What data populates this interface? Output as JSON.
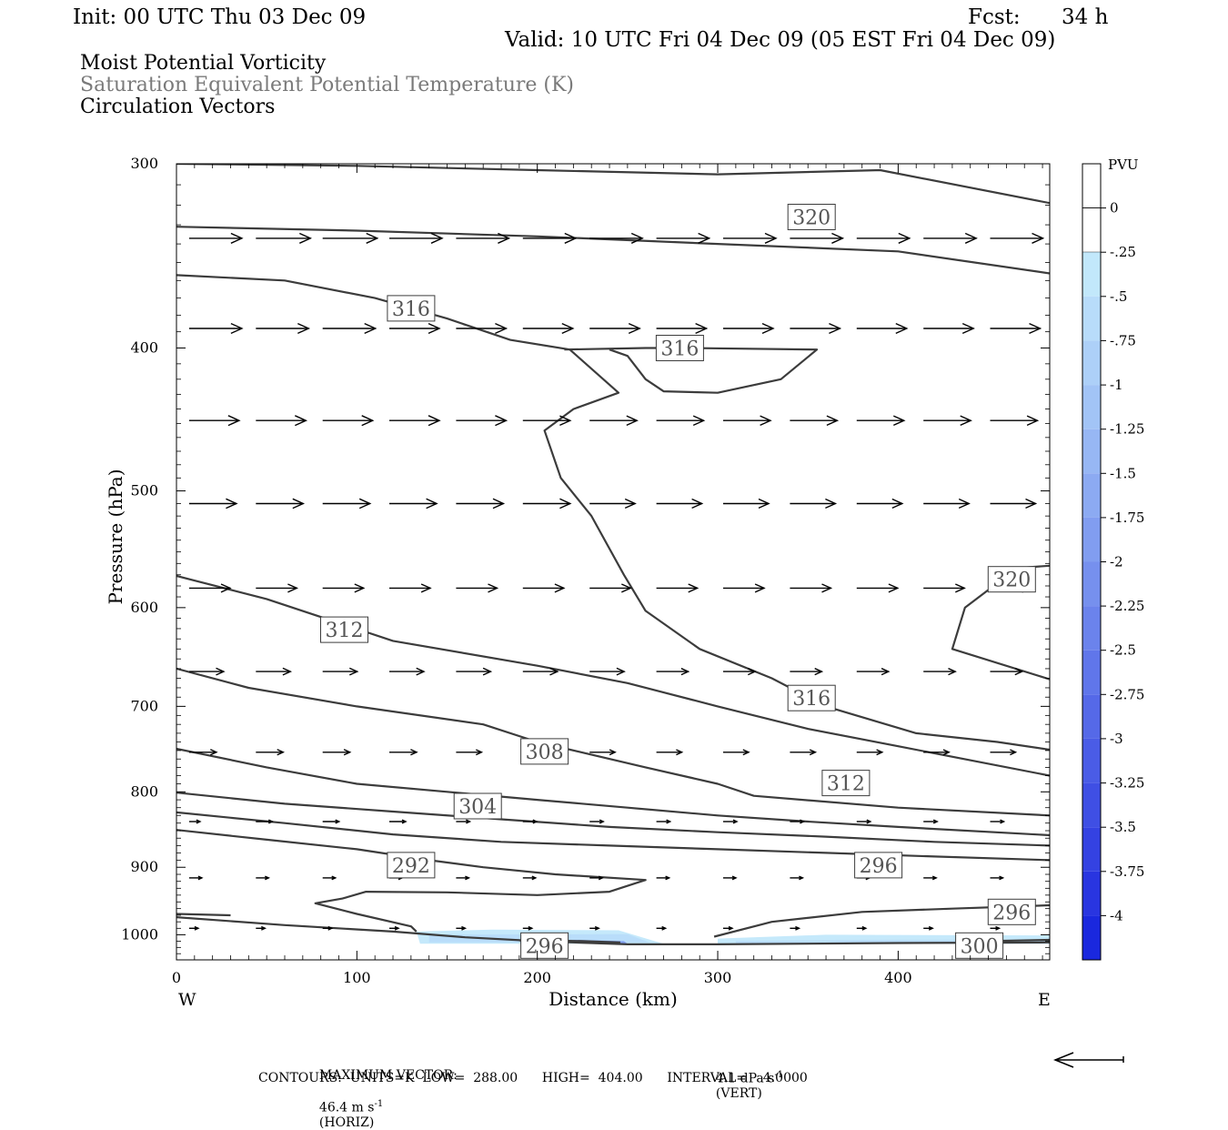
{
  "header": {
    "init": "Init: 00 UTC Thu 03 Dec 09",
    "fcst_label": "Fcst:",
    "fcst_value": "34 h",
    "valid": "Valid: 10 UTC Fri 04 Dec 09 (05 EST Fri 04 Dec 09)"
  },
  "fields": [
    {
      "label": "Moist Potential Vorticity",
      "color": "#000000"
    },
    {
      "label": "Saturation Equivalent Potential Temperature (K)",
      "color": "#7a7a7a"
    },
    {
      "label": "Circulation Vectors",
      "color": "#000000"
    }
  ],
  "footer": {
    "max_vector_label": "MAXIMUM VECTOR:",
    "horiz_value": "46.4 m s",
    "horiz_exp": "-1",
    "horiz_tag": "(HORIZ)",
    "vert_value": "4.1 dPa s",
    "vert_exp": "-1",
    "vert_tag": "(VERT)",
    "contours": "CONTOURS:  UNITS=K  LOW=  288.00      HIGH=  404.00      INTERVAL=    4.0000"
  },
  "chart_data": {
    "type": "cross-section",
    "xlabel": "Distance (km)",
    "ylabel": "Pressure (hPa)",
    "xlim": [
      0,
      484
    ],
    "ylim": [
      1040,
      300
    ],
    "y_scale": "log",
    "x_ticks": [
      0,
      100,
      200,
      300,
      400
    ],
    "y_ticks": [
      300,
      400,
      500,
      600,
      700,
      800,
      900,
      1000
    ],
    "x_end_labels": {
      "left": "W",
      "right": "E"
    },
    "colorbar": {
      "title": "PVU",
      "labels": [
        "0",
        "-.25",
        "-.5",
        "-.75",
        "-1",
        "-1.25",
        "-1.5",
        "-1.75",
        "-2",
        "-2.25",
        "-2.5",
        "-2.75",
        "-3",
        "-3.25",
        "-3.5",
        "-3.75",
        "-4"
      ],
      "colors": [
        "#ffffff",
        "#c2e8fb",
        "#b8dcfa",
        "#add0f8",
        "#a2c4f6",
        "#97b7f4",
        "#8caaf2",
        "#819df0",
        "#7690ee",
        "#6b83ec",
        "#6076ea",
        "#5569e8",
        "#4a5ce6",
        "#3f4fe4",
        "#3442e2",
        "#2935e0",
        "#1a28de"
      ]
    },
    "contour_labels": [
      {
        "x": 352,
        "p": 326,
        "text": "320"
      },
      {
        "x": 130,
        "p": 376,
        "text": "316"
      },
      {
        "x": 279,
        "p": 400,
        "text": "316"
      },
      {
        "x": 463,
        "p": 574,
        "text": "320"
      },
      {
        "x": 93,
        "p": 621,
        "text": "312"
      },
      {
        "x": 352,
        "p": 691,
        "text": "316"
      },
      {
        "x": 204,
        "p": 751,
        "text": "308"
      },
      {
        "x": 371,
        "p": 789,
        "text": "312"
      },
      {
        "x": 167,
        "p": 818,
        "text": "304"
      },
      {
        "x": 130,
        "p": 897,
        "text": "292"
      },
      {
        "x": 389,
        "p": 897,
        "text": "296"
      },
      {
        "x": 463,
        "p": 965,
        "text": "296"
      },
      {
        "x": 204,
        "p": 1017,
        "text": "296"
      },
      {
        "x": 445,
        "p": 1017,
        "text": "300"
      }
    ],
    "contours": [
      {
        "points": [
          [
            0,
            300
          ],
          [
            100,
            301
          ],
          [
            200,
            303
          ],
          [
            300,
            305
          ],
          [
            390,
            303
          ],
          [
            484,
            319
          ]
        ]
      },
      {
        "points": [
          [
            0,
            331
          ],
          [
            100,
            333
          ],
          [
            200,
            336
          ],
          [
            300,
            340
          ],
          [
            400,
            344
          ],
          [
            484,
            356
          ]
        ]
      },
      {
        "points": [
          [
            0,
            357
          ],
          [
            60,
            360
          ],
          [
            110,
            370
          ],
          [
            150,
            382
          ],
          [
            185,
            395
          ],
          [
            218,
            401
          ],
          [
            245,
            429
          ],
          [
            220,
            440
          ],
          [
            204,
            455
          ],
          [
            213,
            490
          ],
          [
            230,
            520
          ],
          [
            248,
            570
          ],
          [
            260,
            603
          ],
          [
            290,
            640
          ],
          [
            330,
            670
          ],
          [
            360,
            700
          ],
          [
            410,
            730
          ],
          [
            455,
            740
          ],
          [
            484,
            749
          ]
        ]
      },
      {
        "points": [
          [
            215,
            401
          ],
          [
            260,
            400
          ],
          [
            283,
            400
          ],
          [
            355,
            401
          ],
          [
            335,
            420
          ],
          [
            300,
            429
          ],
          [
            270,
            428
          ],
          [
            260,
            420
          ],
          [
            250,
            405
          ],
          [
            240,
            401
          ]
        ]
      },
      {
        "points": [
          [
            484,
            562
          ],
          [
            466,
            564
          ],
          [
            437,
            600
          ],
          [
            430,
            640
          ],
          [
            484,
            671
          ]
        ]
      },
      {
        "points": [
          [
            0,
            571
          ],
          [
            50,
            592
          ],
          [
            120,
            632
          ],
          [
            200,
            657
          ],
          [
            250,
            675
          ],
          [
            300,
            700
          ],
          [
            350,
            725
          ],
          [
            400,
            745
          ],
          [
            484,
            780
          ]
        ]
      },
      {
        "points": [
          [
            0,
            660
          ],
          [
            40,
            680
          ],
          [
            100,
            700
          ],
          [
            170,
            720
          ],
          [
            200,
            740
          ],
          [
            260,
            770
          ],
          [
            300,
            790
          ],
          [
            320,
            805
          ],
          [
            400,
            820
          ],
          [
            484,
            830
          ]
        ]
      },
      {
        "points": [
          [
            0,
            748
          ],
          [
            50,
            770
          ],
          [
            100,
            790
          ],
          [
            150,
            800
          ],
          [
            200,
            810
          ],
          [
            250,
            820
          ],
          [
            300,
            830
          ],
          [
            350,
            838
          ],
          [
            400,
            845
          ],
          [
            484,
            856
          ]
        ]
      },
      {
        "points": [
          [
            0,
            801
          ],
          [
            60,
            815
          ],
          [
            120,
            825
          ],
          [
            180,
            835
          ],
          [
            240,
            845
          ],
          [
            300,
            852
          ],
          [
            360,
            858
          ],
          [
            420,
            865
          ],
          [
            484,
            870
          ]
        ]
      },
      {
        "points": [
          [
            0,
            826
          ],
          [
            60,
            840
          ],
          [
            120,
            855
          ],
          [
            180,
            865
          ],
          [
            240,
            870
          ],
          [
            300,
            875
          ],
          [
            360,
            880
          ],
          [
            420,
            885
          ],
          [
            484,
            890
          ]
        ]
      },
      {
        "points": [
          [
            0,
            849
          ],
          [
            50,
            862
          ],
          [
            100,
            875
          ],
          [
            140,
            890
          ],
          [
            170,
            900
          ],
          [
            210,
            910
          ],
          [
            260,
            918
          ],
          [
            240,
            935
          ],
          [
            200,
            940
          ],
          [
            150,
            936
          ],
          [
            105,
            935
          ],
          [
            92,
            945
          ],
          [
            77,
            952
          ],
          [
            100,
            968
          ],
          [
            130,
            987
          ],
          [
            133,
            995
          ]
        ]
      },
      {
        "points": [
          [
            298,
            1003
          ],
          [
            330,
            980
          ],
          [
            380,
            965
          ],
          [
            430,
            960
          ],
          [
            484,
            955
          ]
        ]
      },
      {
        "points": [
          [
            0,
            968
          ],
          [
            30,
            970
          ]
        ]
      },
      {
        "points": [
          [
            0,
            973
          ],
          [
            60,
            985
          ],
          [
            120,
            995
          ],
          [
            160,
            1004
          ],
          [
            200,
            1010
          ],
          [
            250,
            1015
          ],
          [
            300,
            1015
          ],
          [
            400,
            1013
          ],
          [
            484,
            1012
          ]
        ]
      },
      {
        "points": [
          [
            246,
            1012
          ],
          [
            225,
            1010
          ],
          [
            210,
            1009
          ],
          [
            190,
            1009
          ]
        ]
      },
      {
        "points": [
          [
            450,
            1010
          ],
          [
            484,
            1008
          ]
        ]
      }
    ],
    "shading": [
      {
        "level": "-0.25",
        "points": [
          [
            133,
            995
          ],
          [
            175,
            992
          ],
          [
            245,
            993
          ],
          [
            265,
            1010
          ],
          [
            270,
            1014
          ],
          [
            135,
            1014
          ]
        ]
      },
      {
        "level": "-0.25",
        "points": [
          [
            300,
            1006
          ],
          [
            360,
            1000
          ],
          [
            484,
            1001
          ],
          [
            484,
            1014
          ],
          [
            300,
            1014
          ]
        ]
      },
      {
        "level": "-0.5",
        "points": [
          [
            140,
            1000
          ],
          [
            250,
            999
          ],
          [
            262,
            1012
          ],
          [
            140,
            1012
          ]
        ]
      },
      {
        "level": "-0.5",
        "points": [
          [
            310,
            1010
          ],
          [
            400,
            1008
          ],
          [
            484,
            1008
          ],
          [
            484,
            1014
          ],
          [
            310,
            1014
          ]
        ]
      },
      {
        "level": "-1.75",
        "points": [
          [
            220,
            1008
          ],
          [
            248,
            1010
          ],
          [
            250,
            1014
          ],
          [
            220,
            1013
          ]
        ]
      }
    ],
    "vector_columns_x": [
      7,
      44,
      81,
      118,
      155,
      192,
      229,
      266,
      303,
      340,
      377,
      414,
      451
    ],
    "vector_rows": [
      {
        "p": 337,
        "lengths": [
          58,
          60,
          60,
          58,
          58,
          58,
          58,
          58,
          58,
          58,
          58,
          58,
          58
        ]
      },
      {
        "p": 388,
        "lengths": [
          58,
          58,
          58,
          55,
          55,
          55,
          55,
          55,
          55,
          55,
          55,
          55,
          55
        ]
      },
      {
        "p": 448,
        "lengths": [
          55,
          55,
          55,
          55,
          55,
          52,
          52,
          52,
          52,
          52,
          52,
          52,
          52
        ]
      },
      {
        "p": 510,
        "lengths": [
          52,
          52,
          52,
          52,
          52,
          52,
          50,
          50,
          50,
          50,
          50,
          50,
          50
        ]
      },
      {
        "p": 582,
        "lengths": [
          45,
          45,
          45,
          45,
          45,
          45,
          45,
          45,
          45,
          45,
          45,
          45,
          45
        ]
      },
      {
        "p": 663,
        "lengths": [
          38,
          38,
          38,
          38,
          38,
          38,
          38,
          35,
          35,
          35,
          35,
          35,
          35
        ]
      },
      {
        "p": 752,
        "lengths": [
          30,
          30,
          30,
          30,
          28,
          28,
          28,
          28,
          28,
          28,
          28,
          28,
          28
        ]
      },
      {
        "p": 838,
        "lengths": [
          12,
          18,
          18,
          18,
          15,
          15,
          15,
          15,
          15,
          15,
          15,
          15,
          15
        ]
      },
      {
        "p": 915,
        "lengths": [
          14,
          14,
          14,
          14,
          14,
          14,
          14,
          14,
          14,
          14,
          14,
          14,
          14
        ]
      },
      {
        "p": 990,
        "lengths": [
          10,
          10,
          10,
          10,
          10,
          10,
          10,
          10,
          10,
          10,
          10,
          10,
          10
        ]
      }
    ]
  }
}
